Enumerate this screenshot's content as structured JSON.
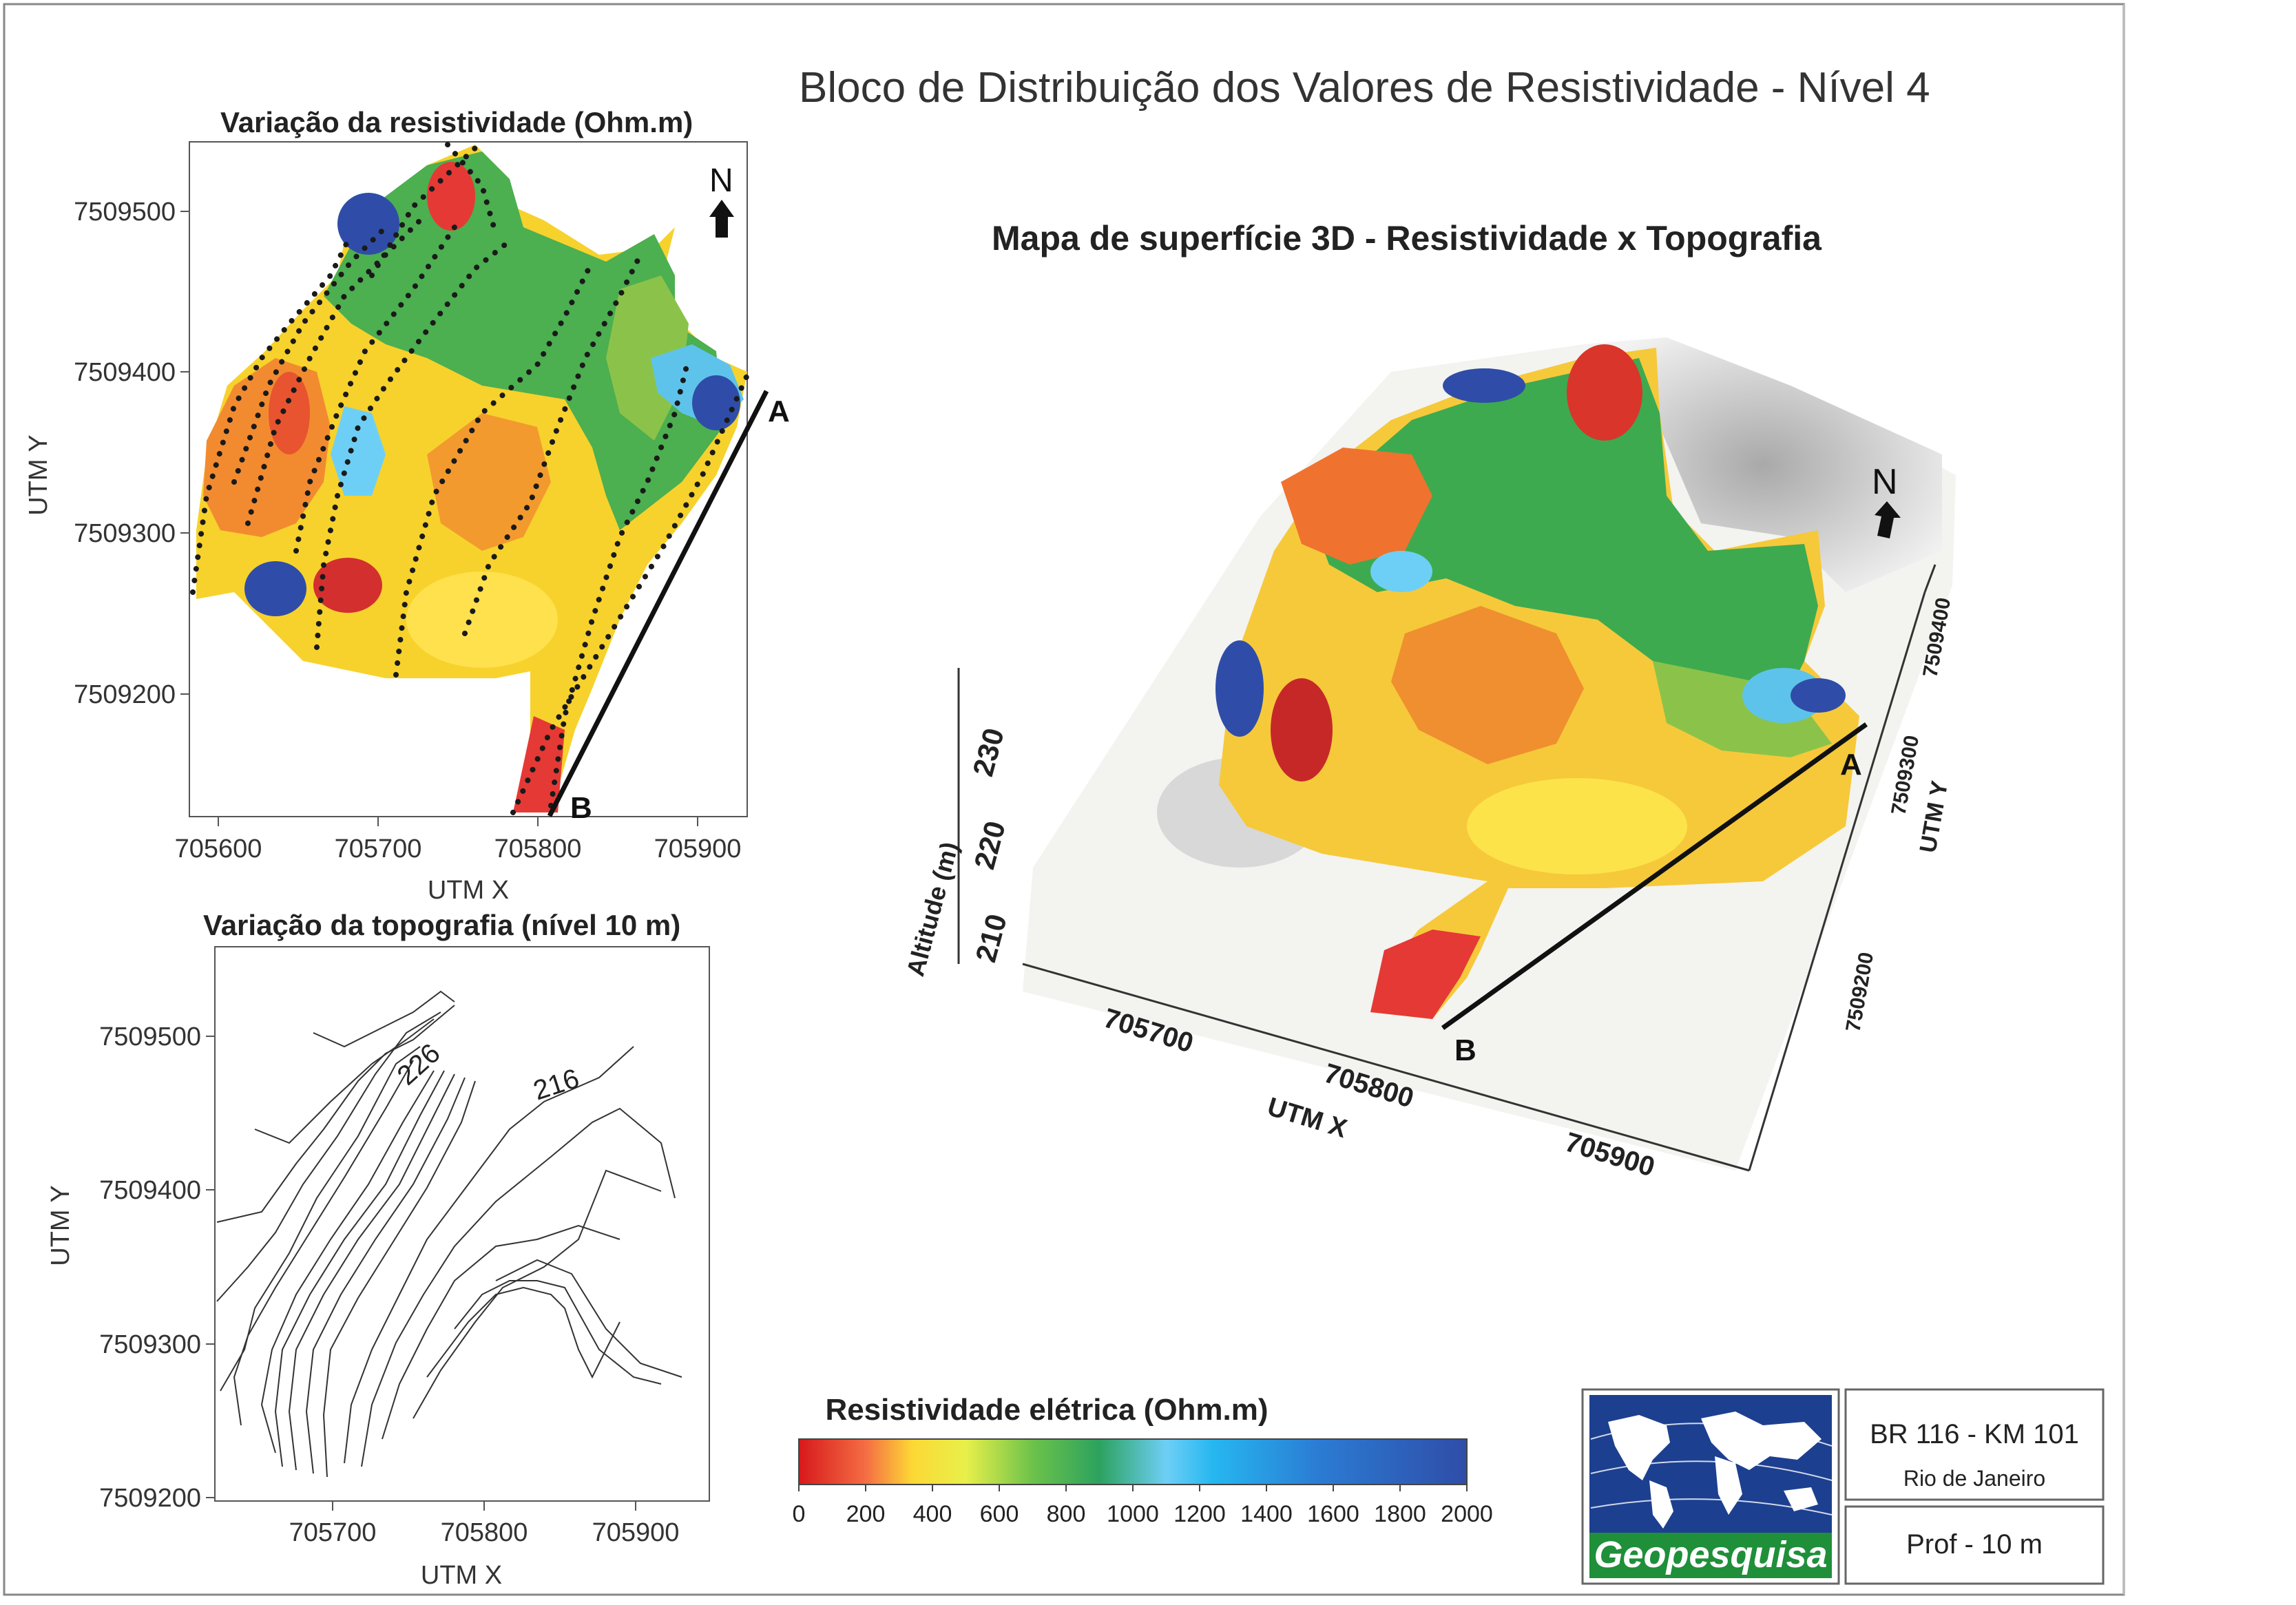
{
  "main_title": "Bloco de Distribuição dos Valores de Resistividade  - Nível 4",
  "map1": {
    "title": "Variação da resistividade (Ohm.m)",
    "x_label": "UTM X",
    "y_label": "UTM Y",
    "x_ticks": [
      "705600",
      "705700",
      "705800",
      "705900"
    ],
    "y_ticks": [
      "7509500",
      "7509400",
      "7509300",
      "7509200"
    ],
    "north": "N",
    "label_a": "A",
    "label_b": "B"
  },
  "map2": {
    "title": "Variação da  topografia (nível 10 m)",
    "x_label": "UTM X",
    "y_label": "UTM Y",
    "x_ticks": [
      "705700",
      "705800",
      "705900"
    ],
    "y_ticks": [
      "7509500",
      "7509400",
      "7509300",
      "7509200"
    ],
    "contour_labels": [
      "226",
      "216"
    ]
  },
  "surface3d": {
    "title": "Mapa de  superfície 3D -  Resistividade  x Topografia",
    "north": "N",
    "label_a": "A",
    "label_b": "B",
    "z_label": "Altitude (m)",
    "z_ticks": [
      "230",
      "220",
      "210"
    ],
    "x_label": "UTM X",
    "x_ticks": [
      "705700",
      "705800",
      "705900"
    ],
    "y_label": "UTM Y",
    "y_ticks": [
      "7509400",
      "7509300",
      "7509200"
    ]
  },
  "colorbar": {
    "title": "Resistividade elétrica (Ohm.m)",
    "ticks": [
      "0",
      "200",
      "400",
      "600",
      "800",
      "1000",
      "1200",
      "1400",
      "1600",
      "1800",
      "2000"
    ],
    "colors": [
      "#d7191c",
      "#f46d43",
      "#fdd835",
      "#e8f04a",
      "#6cc24a",
      "#2ca25f",
      "#6ecff6",
      "#26b7f0",
      "#2b7bd3",
      "#2f4da8"
    ]
  },
  "title_block": {
    "logo_text": "Geopesquisa",
    "project": "BR 116 - KM 101",
    "location": "Rio de Janeiro",
    "depth": "Prof - 10 m"
  }
}
